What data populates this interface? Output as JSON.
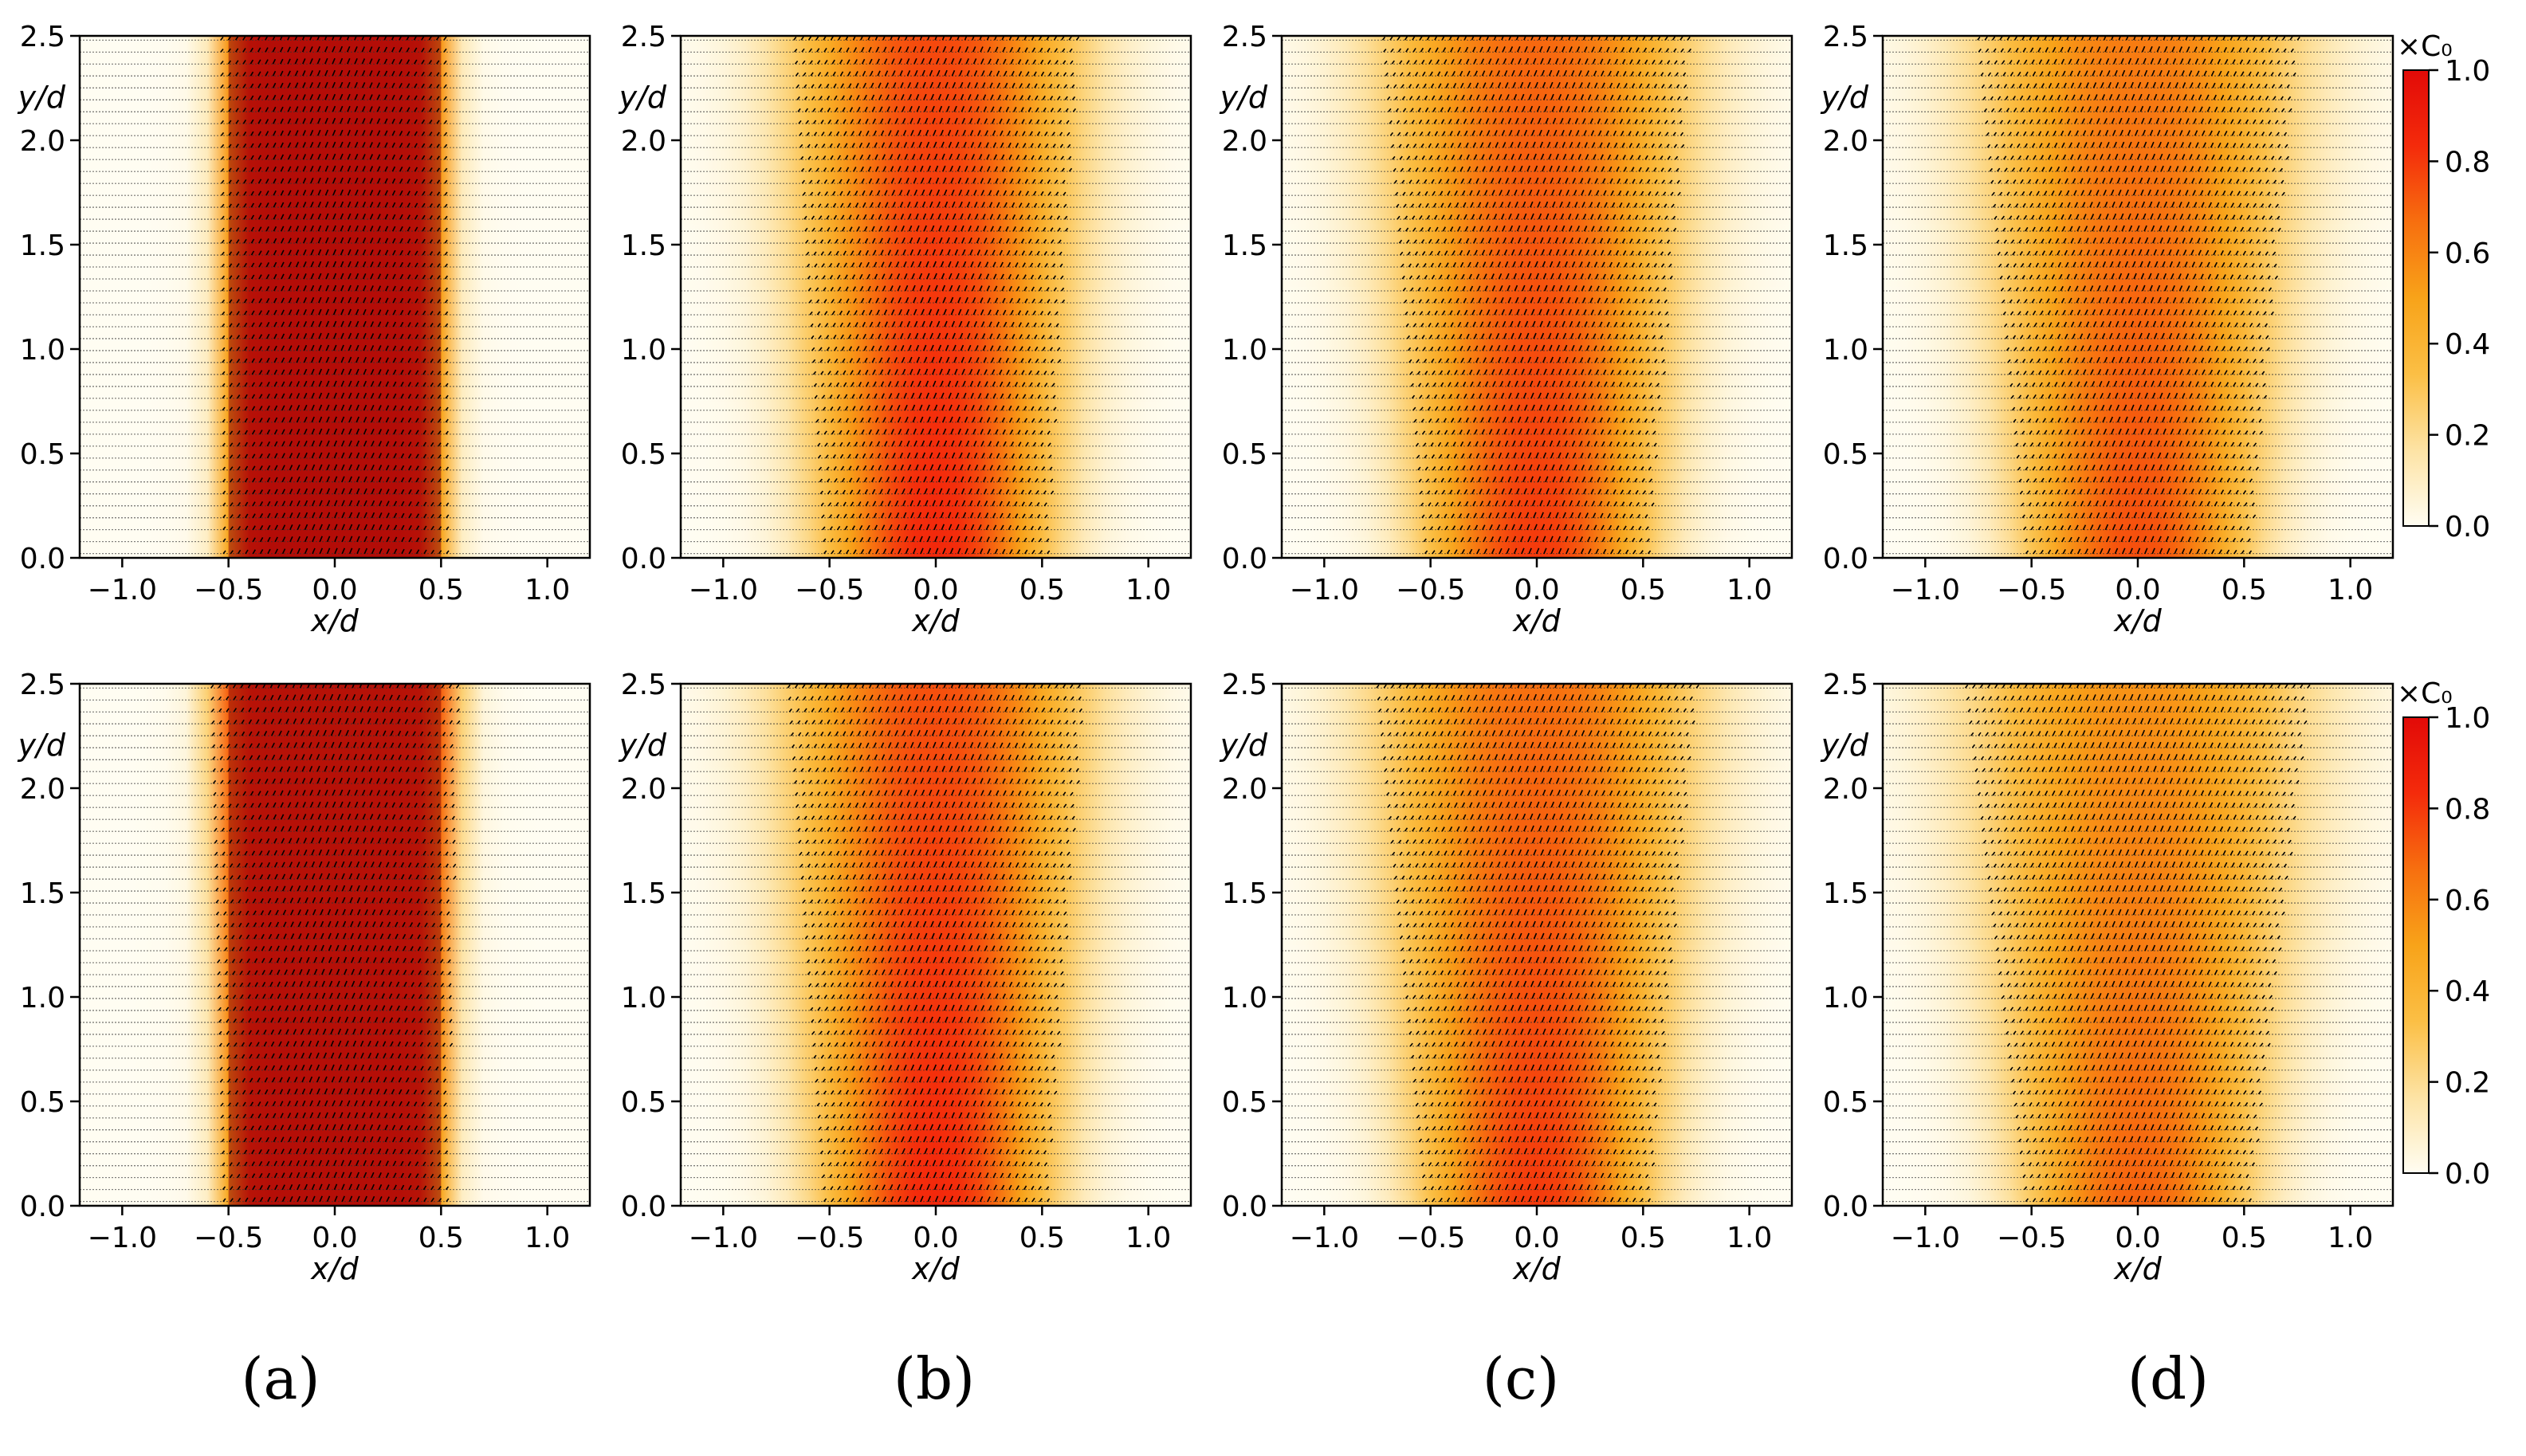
{
  "chart_data": {
    "type": "heatmap",
    "description_free": true,
    "rows": 2,
    "cols": 4,
    "panel_labels": [
      "(a)",
      "(b)",
      "(c)",
      "(d)"
    ],
    "xlabel": "x/d",
    "ylabel": "y/d",
    "xlim": [
      -1.2,
      1.2
    ],
    "ylim": [
      0.0,
      2.5
    ],
    "xticks": [
      -1.0,
      -0.5,
      0.0,
      0.5,
      1.0
    ],
    "xtick_labels": [
      "−1.0",
      "−0.5",
      "0.0",
      "0.5",
      "1.0"
    ],
    "yticks": [
      0.0,
      0.5,
      1.0,
      1.5,
      2.0,
      2.5
    ],
    "ytick_labels": [
      "0.0",
      "0.5",
      "1.0",
      "1.5",
      "2.0",
      "2.5"
    ],
    "colorbar": {
      "label": "×C₀",
      "range": [
        0.0,
        1.0
      ],
      "ticks": [
        0.0,
        0.2,
        0.4,
        0.6,
        0.8,
        1.0
      ],
      "tick_labels": [
        "0.0",
        "0.2",
        "0.4",
        "0.6",
        "0.8",
        "1.0"
      ],
      "colormap": [
        "#fffdf2",
        "#fde3a4",
        "#fbbf45",
        "#f8a319",
        "#f76f0f",
        "#f42b0b",
        "#e20a08"
      ]
    },
    "panels": [
      {
        "row": 0,
        "col": 0,
        "halfwidth0": 0.5,
        "spread": 0.02,
        "peak": 0.97,
        "dark": true
      },
      {
        "row": 0,
        "col": 1,
        "halfwidth0": 0.5,
        "spread": 0.25,
        "peak": 0.85,
        "dark": false
      },
      {
        "row": 0,
        "col": 2,
        "halfwidth0": 0.5,
        "spread": 0.35,
        "peak": 0.8,
        "dark": false
      },
      {
        "row": 0,
        "col": 3,
        "halfwidth0": 0.5,
        "spread": 0.4,
        "peak": 0.75,
        "dark": false
      },
      {
        "row": 1,
        "col": 0,
        "halfwidth0": 0.5,
        "spread": 0.1,
        "peak": 0.95,
        "dark": true
      },
      {
        "row": 1,
        "col": 1,
        "halfwidth0": 0.5,
        "spread": 0.3,
        "peak": 0.85,
        "dark": false
      },
      {
        "row": 1,
        "col": 2,
        "halfwidth0": 0.5,
        "spread": 0.4,
        "peak": 0.8,
        "dark": false
      },
      {
        "row": 1,
        "col": 3,
        "halfwidth0": 0.5,
        "spread": 0.5,
        "peak": 0.7,
        "dark": false
      }
    ]
  }
}
